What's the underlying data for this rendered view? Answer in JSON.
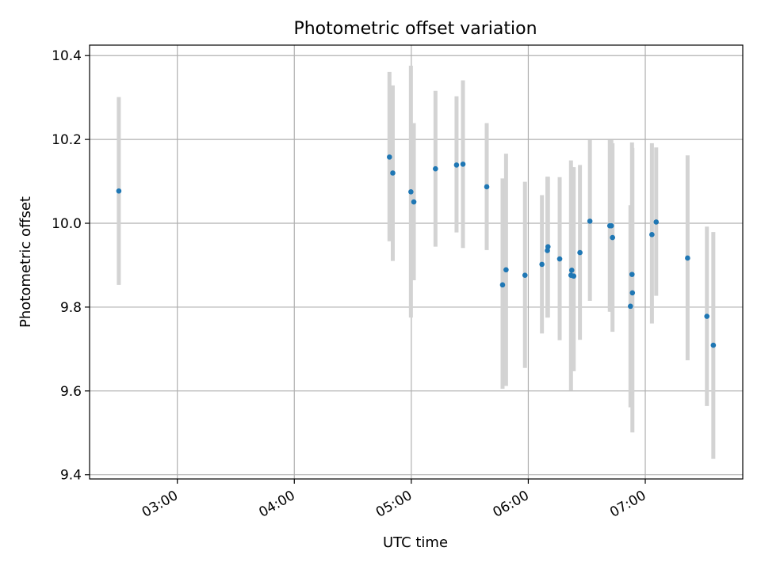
{
  "chart_data": {
    "type": "scatter",
    "title": "Photometric offset variation",
    "xlabel": "UTC time",
    "ylabel": "Photometric offset",
    "xlim": [
      "02:15",
      "07:50"
    ],
    "ylim": [
      9.39,
      10.425
    ],
    "grid": true,
    "x_ticks": [
      "03:00",
      "04:00",
      "05:00",
      "06:00",
      "07:00"
    ],
    "y_ticks": [
      "9.4",
      "9.6",
      "9.8",
      "10.0",
      "10.2",
      "10.4"
    ],
    "colors": {
      "point": "#1f77b4",
      "errorbar": "#d3d3d3",
      "grid": "#b0b0b0"
    },
    "series": [
      {
        "points": [
          {
            "x": "02:30",
            "y": 10.077,
            "low": 9.853,
            "high": 10.301
          },
          {
            "x": "04:48.8",
            "y": 10.158,
            "low": 9.957,
            "high": 10.361
          },
          {
            "x": "04:50.5",
            "y": 10.12,
            "low": 9.91,
            "high": 10.329
          },
          {
            "x": "04:59.8",
            "y": 10.075,
            "low": 9.775,
            "high": 10.376
          },
          {
            "x": "05:01.3",
            "y": 10.051,
            "low": 9.864,
            "high": 10.239
          },
          {
            "x": "05:12.4",
            "y": 10.13,
            "low": 9.944,
            "high": 10.316
          },
          {
            "x": "05:23.2",
            "y": 10.139,
            "low": 9.978,
            "high": 10.303
          },
          {
            "x": "05:26.5",
            "y": 10.141,
            "low": 9.941,
            "high": 10.341
          },
          {
            "x": "05:38.7",
            "y": 10.087,
            "low": 9.936,
            "high": 10.239
          },
          {
            "x": "05:46.8",
            "y": 9.853,
            "low": 9.605,
            "high": 10.107
          },
          {
            "x": "05:48.6",
            "y": 9.889,
            "low": 9.612,
            "high": 10.166
          },
          {
            "x": "05:58.3",
            "y": 9.876,
            "low": 9.655,
            "high": 10.099
          },
          {
            "x": "06:07.0",
            "y": 9.902,
            "low": 9.737,
            "high": 10.067
          },
          {
            "x": "06:09.8",
            "y": 9.935,
            "low": 9.775,
            "high": 10.111
          },
          {
            "x": "06:10.1",
            "y": 9.944,
            "low": 9.775,
            "high": 10.111
          },
          {
            "x": "06:16.1",
            "y": 9.915,
            "low": 9.721,
            "high": 10.11
          },
          {
            "x": "06:21.9",
            "y": 9.876,
            "low": 9.601,
            "high": 10.15
          },
          {
            "x": "06:22.3",
            "y": 9.888,
            "low": 9.647,
            "high": 10.134
          },
          {
            "x": "06:23.3",
            "y": 9.874,
            "low": 9.647,
            "high": 10.134
          },
          {
            "x": "06:26.5",
            "y": 9.93,
            "low": 9.722,
            "high": 10.139
          },
          {
            "x": "06:31.6",
            "y": 10.005,
            "low": 9.815,
            "high": 10.199
          },
          {
            "x": "06:41.8",
            "y": 9.994,
            "low": 9.789,
            "high": 10.199
          },
          {
            "x": "06:42.6",
            "y": 9.994,
            "low": 9.789,
            "high": 10.199
          },
          {
            "x": "06:43.2",
            "y": 9.966,
            "low": 9.741,
            "high": 10.191
          },
          {
            "x": "06:52.4",
            "y": 9.802,
            "low": 9.561,
            "high": 10.043
          },
          {
            "x": "06:53.2",
            "y": 9.878,
            "low": 9.561,
            "high": 10.193
          },
          {
            "x": "06:53.4",
            "y": 9.834,
            "low": 9.501,
            "high": 10.18
          },
          {
            "x": "07:03.4",
            "y": 9.973,
            "low": 9.761,
            "high": 10.191
          },
          {
            "x": "07:05.6",
            "y": 10.003,
            "low": 9.827,
            "high": 10.181
          },
          {
            "x": "07:21.7",
            "y": 9.917,
            "low": 9.673,
            "high": 10.162
          },
          {
            "x": "07:31.6",
            "y": 9.778,
            "low": 9.564,
            "high": 9.992
          },
          {
            "x": "07:34.9",
            "y": 9.709,
            "low": 9.438,
            "high": 9.979
          }
        ]
      }
    ]
  }
}
